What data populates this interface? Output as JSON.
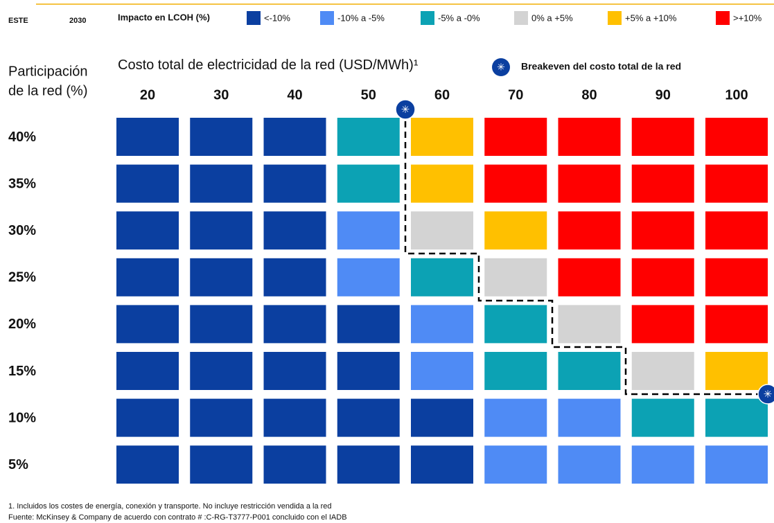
{
  "chart_data": {
    "type": "heatmap",
    "header_left": "ESTE",
    "year": "2030",
    "legend_title": "Impacto en LCOH (%)",
    "legend": [
      {
        "name": "<-10%",
        "color": "#0b3fa0"
      },
      {
        "name": "-10% a -5%",
        "color": "#4f8bf5"
      },
      {
        "name": "-5% a -0%",
        "color": "#0ca2b4"
      },
      {
        "name": "0% a +5%",
        "color": "#d3d3d3"
      },
      {
        "name": "+5% a +10%",
        "color": "#ffc000"
      },
      {
        "name": ">+10%",
        "color": "#ff0000"
      }
    ],
    "y_label": [
      "Participación",
      "de la red (%)"
    ],
    "title": "Costo total de electricidad de la red",
    "title_unit": "(USD/MWh)¹",
    "breakeven_label": "Breakeven del costo total de la red",
    "x": [
      20,
      30,
      40,
      50,
      60,
      70,
      80,
      90,
      100
    ],
    "rows": [
      "40%",
      "35%",
      "30%",
      "25%",
      "20%",
      "15%",
      "10%",
      "5%"
    ],
    "cells": [
      [
        "<-10%",
        "<-10%",
        "<-10%",
        "-5% a -0%",
        "+5% a +10%",
        ">+10%",
        ">+10%",
        ">+10%",
        ">+10%"
      ],
      [
        "<-10%",
        "<-10%",
        "<-10%",
        "-5% a -0%",
        "+5% a +10%",
        ">+10%",
        ">+10%",
        ">+10%",
        ">+10%"
      ],
      [
        "<-10%",
        "<-10%",
        "<-10%",
        "-10% a -5%",
        "0% a +5%",
        "+5% a +10%",
        ">+10%",
        ">+10%",
        ">+10%"
      ],
      [
        "<-10%",
        "<-10%",
        "<-10%",
        "-10% a -5%",
        "-5% a -0%",
        "0% a +5%",
        ">+10%",
        ">+10%",
        ">+10%"
      ],
      [
        "<-10%",
        "<-10%",
        "<-10%",
        "<-10%",
        "-10% a -5%",
        "-5% a -0%",
        "0% a +5%",
        ">+10%",
        ">+10%"
      ],
      [
        "<-10%",
        "<-10%",
        "<-10%",
        "<-10%",
        "-10% a -5%",
        "-5% a -0%",
        "-5% a -0%",
        "0% a +5%",
        "+5% a +10%"
      ],
      [
        "<-10%",
        "<-10%",
        "<-10%",
        "<-10%",
        "<-10%",
        "-10% a -5%",
        "-10% a -5%",
        "-5% a -0%",
        "-5% a -0%"
      ],
      [
        "<-10%",
        "<-10%",
        "<-10%",
        "<-10%",
        "<-10%",
        "-10% a -5%",
        "-10% a -5%",
        "-10% a -5%",
        "-10% a -5%"
      ]
    ],
    "footnotes": [
      "1.    Incluidos los costes de energía, conexión y transporte. No incluye restricción vendida a la red",
      "Fuente: McKinsey & Company de acuerdo con contrato # :C-RG-T3777-P001 concluido con el IADB"
    ]
  }
}
